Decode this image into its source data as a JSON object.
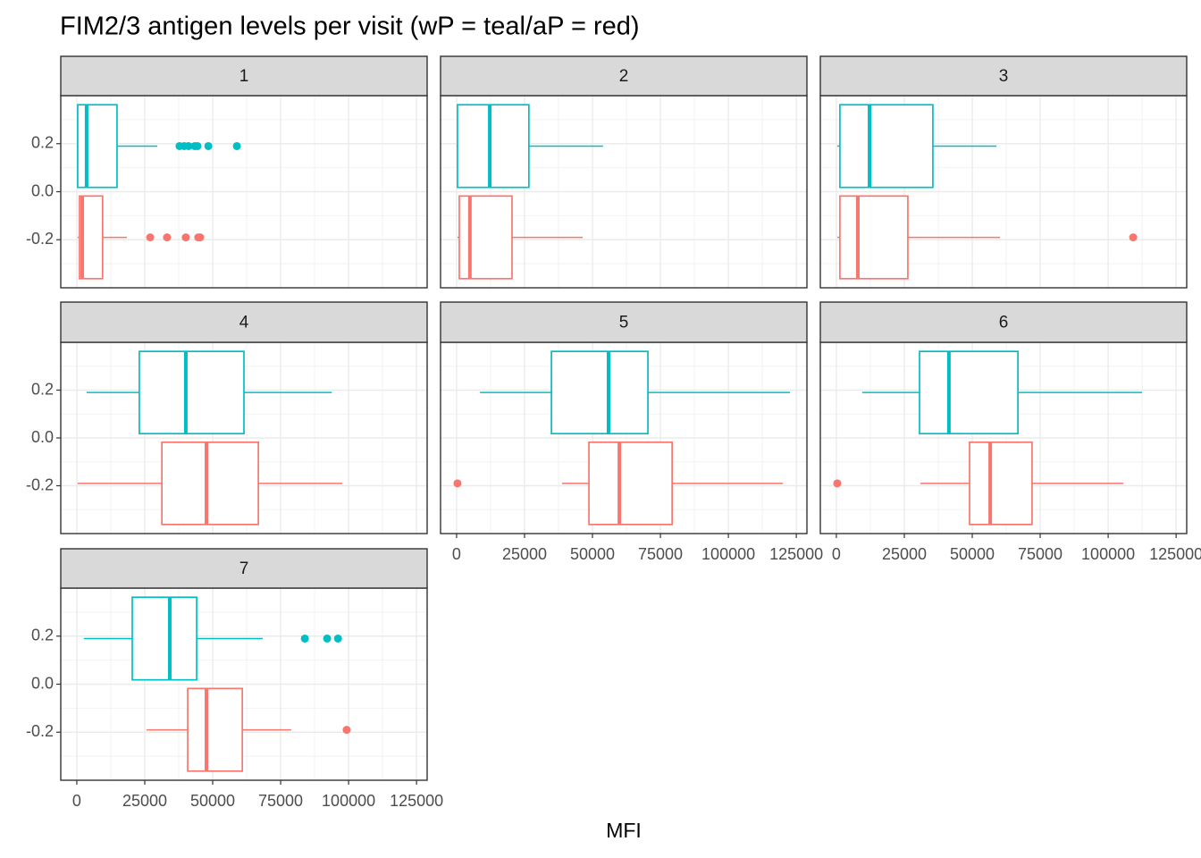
{
  "title": "FIM2/3 antigen levels per visit (wP = teal/aP = red)",
  "x_label": "MFI",
  "chart_data": [
    {
      "type": "boxplot",
      "panel": "1",
      "xlim": [
        -5900,
        128900
      ],
      "xticks": [
        0,
        25000,
        50000,
        75000,
        100000,
        125000
      ],
      "ylim": [
        -0.4,
        0.4
      ],
      "yticks": [
        -0.2,
        {
          "value": 0,
          "label": "0.0"
        },
        0.2
      ],
      "grid": true,
      "series": [
        {
          "color": "#00bfc4",
          "y": 0.19,
          "min": 0,
          "q1": 330,
          "median": 3600,
          "q3": 14800,
          "max": 29600,
          "outliers": [
            37800,
            39500,
            41100,
            43400,
            44400,
            48400,
            58900
          ]
        },
        {
          "color": "#f8766d",
          "y": -0.19,
          "min": 300,
          "q1": 990,
          "median": 2000,
          "q3": 9500,
          "max": 18400,
          "outliers": [
            27000,
            33200,
            40100,
            44700,
            45400
          ]
        }
      ]
    },
    {
      "type": "boxplot",
      "panel": "2",
      "xlim": [
        -5900,
        128900
      ],
      "xticks": [
        0,
        25000,
        50000,
        75000,
        100000,
        125000
      ],
      "ylim": [
        -0.4,
        0.4
      ],
      "yticks": [
        -0.2,
        {
          "value": 0,
          "label": "0.0"
        },
        0.2
      ],
      "grid": true,
      "series": [
        {
          "color": "#00bfc4",
          "y": 0.19,
          "min": 0,
          "q1": 330,
          "median": 12200,
          "q3": 26600,
          "max": 53900,
          "outliers": []
        },
        {
          "color": "#f8766d",
          "y": -0.19,
          "min": 330,
          "q1": 990,
          "median": 4900,
          "q3": 20400,
          "max": 46400,
          "outliers": []
        }
      ]
    },
    {
      "type": "boxplot",
      "panel": "3",
      "xlim": [
        -5900,
        128900
      ],
      "xticks": [
        0,
        25000,
        50000,
        75000,
        100000,
        125000
      ],
      "ylim": [
        -0.4,
        0.4
      ],
      "yticks": [
        -0.2,
        {
          "value": 0,
          "label": "0.0"
        },
        0.2
      ],
      "grid": true,
      "series": [
        {
          "color": "#00bfc4",
          "y": 0.19,
          "min": 330,
          "q1": 1300,
          "median": 12200,
          "q3": 35500,
          "max": 58900,
          "outliers": []
        },
        {
          "color": "#f8766d",
          "y": -0.19,
          "min": 330,
          "q1": 1300,
          "median": 7900,
          "q3": 26300,
          "max": 60200,
          "outliers": [
            109200
          ]
        }
      ]
    },
    {
      "type": "boxplot",
      "panel": "4",
      "xlim": [
        -5900,
        128900
      ],
      "xticks": [
        0,
        25000,
        50000,
        75000,
        100000,
        125000
      ],
      "ylim": [
        -0.4,
        0.4
      ],
      "yticks": [
        -0.2,
        {
          "value": 0,
          "label": "0.0"
        },
        0.2
      ],
      "grid": true,
      "series": [
        {
          "color": "#00bfc4",
          "y": 0.19,
          "min": 3600,
          "q1": 23000,
          "median": 40100,
          "q3": 61500,
          "max": 93800,
          "outliers": []
        },
        {
          "color": "#f8766d",
          "y": -0.19,
          "min": 300,
          "q1": 31300,
          "median": 47700,
          "q3": 66800,
          "max": 97700,
          "outliers": []
        }
      ]
    },
    {
      "type": "boxplot",
      "panel": "5",
      "xlim": [
        -5900,
        128900
      ],
      "xticks": [
        0,
        25000,
        50000,
        75000,
        100000,
        125000
      ],
      "ylim": [
        -0.4,
        0.4
      ],
      "yticks": [
        -0.2,
        {
          "value": 0,
          "label": "0.0"
        },
        0.2
      ],
      "grid": true,
      "series": [
        {
          "color": "#00bfc4",
          "y": 0.19,
          "min": 8600,
          "q1": 34900,
          "median": 55900,
          "q3": 70400,
          "max": 122700,
          "outliers": []
        },
        {
          "color": "#f8766d",
          "y": -0.19,
          "min": 38800,
          "q1": 48700,
          "median": 59900,
          "q3": 79300,
          "max": 120100,
          "outliers": [
            330
          ]
        }
      ]
    },
    {
      "type": "boxplot",
      "panel": "6",
      "xlim": [
        -5900,
        128900
      ],
      "xticks": [
        0,
        25000,
        50000,
        75000,
        100000,
        125000
      ],
      "ylim": [
        -0.4,
        0.4
      ],
      "yticks": [
        -0.2,
        {
          "value": 0,
          "label": "0.0"
        },
        0.2
      ],
      "grid": true,
      "series": [
        {
          "color": "#00bfc4",
          "y": 0.19,
          "min": 9500,
          "q1": 30600,
          "median": 41400,
          "q3": 66800,
          "max": 112500,
          "outliers": []
        },
        {
          "color": "#f8766d",
          "y": -0.19,
          "min": 30900,
          "q1": 49000,
          "median": 56600,
          "q3": 72000,
          "max": 105600,
          "outliers": [
            330
          ]
        }
      ]
    },
    {
      "type": "boxplot",
      "panel": "7",
      "xlim": [
        -5900,
        128900
      ],
      "xticks": [
        0,
        25000,
        50000,
        75000,
        100000,
        125000
      ],
      "ylim": [
        -0.4,
        0.4
      ],
      "yticks": [
        -0.2,
        {
          "value": 0,
          "label": "0.0"
        },
        0.2
      ],
      "grid": true,
      "series": [
        {
          "color": "#00bfc4",
          "y": 0.19,
          "min": 2600,
          "q1": 20400,
          "median": 34200,
          "q3": 44100,
          "max": 68400,
          "outliers": [
            83900,
            92100,
            96100
          ]
        },
        {
          "color": "#f8766d",
          "y": -0.19,
          "min": 25700,
          "q1": 40800,
          "median": 47700,
          "q3": 60900,
          "max": 78900,
          "outliers": [
            99300
          ]
        }
      ]
    }
  ]
}
